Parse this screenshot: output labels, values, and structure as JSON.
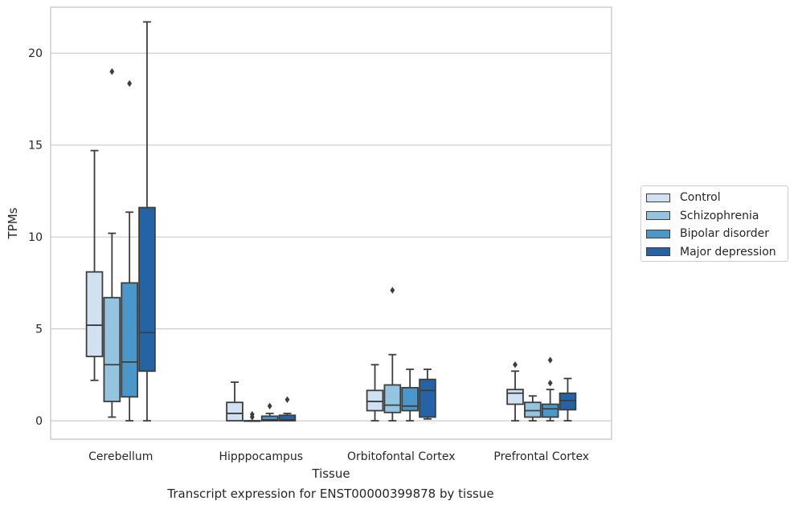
{
  "chart_data": {
    "type": "box",
    "xlabel": "Tissue",
    "ylabel": "TPMs",
    "caption": "Transcript expression for ENST00000399878 by tissue",
    "ylim": [
      -1.0,
      22.5
    ],
    "yticks": [
      0,
      5,
      10,
      15,
      20
    ],
    "grid": "horizontal",
    "legend_position": "right",
    "categories": [
      "Cerebellum",
      "Hipppocampus",
      "Orbitofontal Cortex",
      "Prefrontal Cortex"
    ],
    "series": [
      {
        "name": "Control",
        "color": "#d0e1f2",
        "boxes": [
          {
            "whisker_low": 2.2,
            "q1": 3.5,
            "median": 5.2,
            "q3": 8.1,
            "whisker_high": 14.7,
            "outliers": []
          },
          {
            "whisker_low": 0.0,
            "q1": 0.0,
            "median": 0.4,
            "q3": 1.0,
            "whisker_high": 2.1,
            "outliers": []
          },
          {
            "whisker_low": 0.0,
            "q1": 0.55,
            "median": 1.05,
            "q3": 1.65,
            "whisker_high": 3.05,
            "outliers": []
          },
          {
            "whisker_low": 0.0,
            "q1": 0.9,
            "median": 1.5,
            "q3": 1.7,
            "whisker_high": 2.7,
            "outliers": [
              3.05
            ]
          }
        ]
      },
      {
        "name": "Schizophrenia",
        "color": "#94c4df",
        "boxes": [
          {
            "whisker_low": 0.2,
            "q1": 1.05,
            "median": 3.05,
            "q3": 6.7,
            "whisker_high": 10.2,
            "outliers": [
              19.0
            ]
          },
          {
            "whisker_low": 0.0,
            "q1": 0.0,
            "median": 0.0,
            "q3": 0.0,
            "whisker_high": 0.0,
            "outliers": [
              0.2,
              0.35
            ]
          },
          {
            "whisker_low": 0.0,
            "q1": 0.45,
            "median": 0.85,
            "q3": 1.95,
            "whisker_high": 3.6,
            "outliers": [
              7.1
            ]
          },
          {
            "whisker_low": 0.0,
            "q1": 0.2,
            "median": 0.55,
            "q3": 1.0,
            "whisker_high": 1.35,
            "outliers": []
          }
        ]
      },
      {
        "name": "Bipolar disorder",
        "color": "#4a98c9",
        "boxes": [
          {
            "whisker_low": 0.0,
            "q1": 1.3,
            "median": 3.2,
            "q3": 7.5,
            "whisker_high": 11.35,
            "outliers": [
              18.35
            ]
          },
          {
            "whisker_low": 0.0,
            "q1": 0.0,
            "median": 0.05,
            "q3": 0.25,
            "whisker_high": 0.4,
            "outliers": [
              0.8
            ]
          },
          {
            "whisker_low": 0.0,
            "q1": 0.55,
            "median": 0.8,
            "q3": 1.8,
            "whisker_high": 2.8,
            "outliers": []
          },
          {
            "whisker_low": 0.0,
            "q1": 0.2,
            "median": 0.65,
            "q3": 0.9,
            "whisker_high": 1.7,
            "outliers": [
              2.05,
              3.3
            ]
          }
        ]
      },
      {
        "name": "Major depression",
        "color": "#2464a6",
        "boxes": [
          {
            "whisker_low": 0.0,
            "q1": 2.7,
            "median": 4.8,
            "q3": 11.6,
            "whisker_high": 21.7,
            "outliers": []
          },
          {
            "whisker_low": 0.0,
            "q1": 0.0,
            "median": 0.05,
            "q3": 0.3,
            "whisker_high": 0.4,
            "outliers": [
              1.15
            ]
          },
          {
            "whisker_low": 0.1,
            "q1": 0.2,
            "median": 1.65,
            "q3": 2.25,
            "whisker_high": 2.8,
            "outliers": []
          },
          {
            "whisker_low": 0.0,
            "q1": 0.6,
            "median": 1.1,
            "q3": 1.5,
            "whisker_high": 2.3,
            "outliers": []
          }
        ]
      }
    ]
  }
}
